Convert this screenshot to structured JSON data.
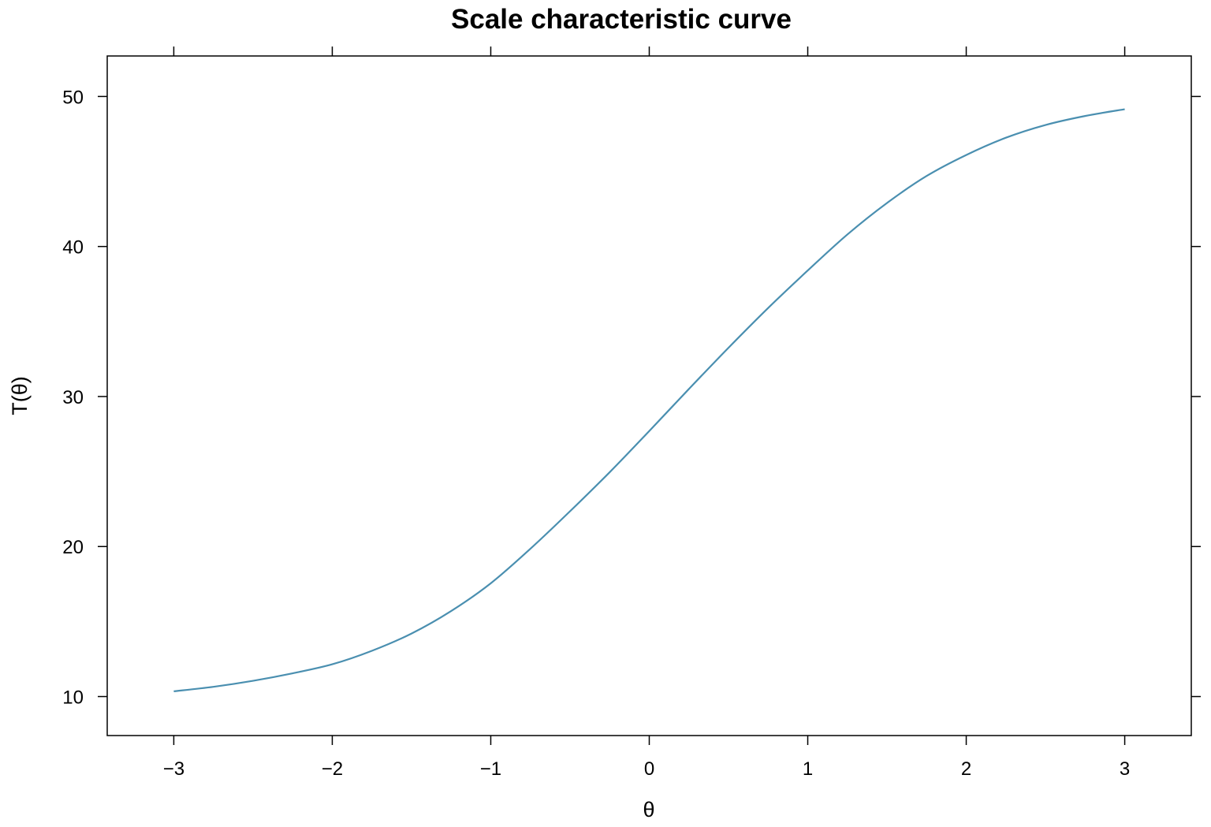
{
  "chart_data": {
    "type": "line",
    "title": "Scale characteristic curve",
    "xlabel": "θ",
    "ylabel": "T(θ)",
    "xlim": [
      -3.42,
      3.42
    ],
    "ylim": [
      7.4,
      52.7
    ],
    "x_ticks": [
      -3,
      -2,
      -1,
      0,
      1,
      2,
      3
    ],
    "x_tick_labels": [
      "−3",
      "−2",
      "−1",
      "0",
      "1",
      "2",
      "3"
    ],
    "y_ticks": [
      10,
      20,
      30,
      40,
      50
    ],
    "y_tick_labels": [
      "10",
      "20",
      "30",
      "40",
      "50"
    ],
    "grid": false,
    "line_color": "#4a8fb0",
    "series": [
      {
        "x": [
          -3.0,
          -2.75,
          -2.5,
          -2.25,
          -2.0,
          -1.75,
          -1.5,
          -1.25,
          -1.0,
          -0.75,
          -0.5,
          -0.25,
          0.0,
          0.25,
          0.5,
          0.75,
          1.0,
          1.25,
          1.5,
          1.75,
          2.0,
          2.25,
          2.5,
          2.75,
          3.0
        ],
        "y": [
          10.35,
          10.65,
          11.05,
          11.55,
          12.15,
          13.05,
          14.2,
          15.7,
          17.55,
          19.85,
          22.35,
          24.95,
          27.7,
          30.5,
          33.25,
          35.9,
          38.4,
          40.8,
          42.9,
          44.7,
          46.1,
          47.25,
          48.1,
          48.7,
          49.15
        ]
      }
    ]
  }
}
